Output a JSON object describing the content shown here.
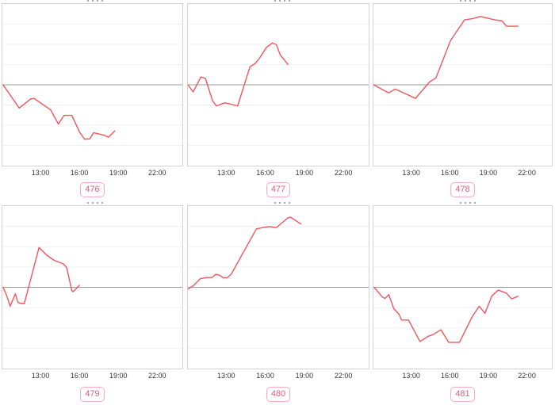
{
  "colors": {
    "line": "#f0545c",
    "zero_line": "#9b9b9b",
    "gridline": "#f0f0f0",
    "border": "#d3d3d3",
    "tick_text": "#333333",
    "badge_text": "#e25c82",
    "badge_border": "#f5abc0",
    "background": "#ffffff"
  },
  "x_axis": {
    "tick_labels": [
      "13:00",
      "16:00",
      "19:00",
      "22:00"
    ],
    "tick_hours": [
      13,
      16,
      19,
      22
    ],
    "range_hours": [
      10,
      24
    ],
    "grid": "horizontal-only",
    "y_axis_labels": "none"
  },
  "chart_data": [
    {
      "type": "line",
      "label": "476",
      "title": "",
      "x_unit": "time-of-day-hours",
      "y_unit": "relative-gridline-units (zero = center reference line)",
      "x": [
        10.05,
        11.3,
        12.2,
        12.45,
        13.75,
        14.35,
        14.8,
        15.4,
        16.0,
        16.4,
        16.8,
        17.1,
        17.95,
        18.25,
        18.75
      ],
      "y": [
        0.0,
        -1.15,
        -0.7,
        -0.67,
        -1.24,
        -1.94,
        -1.51,
        -1.51,
        -2.33,
        -2.69,
        -2.67,
        -2.37,
        -2.5,
        -2.6,
        -2.28
      ]
    },
    {
      "type": "line",
      "label": "477",
      "title": "",
      "x_unit": "time-of-day-hours",
      "y_unit": "relative-gridline-units (zero = center reference line)",
      "x": [
        10.0,
        10.4,
        11.0,
        11.35,
        11.9,
        12.2,
        12.85,
        13.4,
        13.85,
        14.8,
        15.2,
        15.5,
        16.1,
        16.55,
        16.85,
        17.15,
        17.75
      ],
      "y": [
        0.0,
        -0.35,
        0.39,
        0.32,
        -0.78,
        -1.05,
        -0.89,
        -0.97,
        -1.05,
        0.89,
        1.05,
        1.28,
        1.86,
        2.07,
        1.99,
        1.48,
        1.01
      ]
    },
    {
      "type": "line",
      "label": "478",
      "title": "",
      "x_unit": "time-of-day-hours",
      "y_unit": "relative-gridline-units (zero = center reference line)",
      "x": [
        10.0,
        11.2,
        11.7,
        12.3,
        13.3,
        14.4,
        14.9,
        16.05,
        16.35,
        17.15,
        17.75,
        18.4,
        19.5,
        20.1,
        20.45,
        21.35
      ],
      "y": [
        0.0,
        -0.4,
        -0.21,
        -0.38,
        -0.67,
        0.14,
        0.34,
        2.19,
        2.47,
        3.21,
        3.27,
        3.38,
        3.22,
        3.16,
        2.9,
        2.9
      ]
    },
    {
      "type": "line",
      "label": "479",
      "title": "",
      "x_unit": "time-of-day-hours",
      "y_unit": "relative-gridline-units (zero = center reference line)",
      "x": [
        10.05,
        10.3,
        10.6,
        11.0,
        11.2,
        11.4,
        11.7,
        12.85,
        13.45,
        14.05,
        14.75,
        15.0,
        15.4,
        15.5,
        16.0
      ],
      "y": [
        0.0,
        -0.36,
        -0.93,
        -0.32,
        -0.74,
        -0.78,
        -0.8,
        1.96,
        1.58,
        1.32,
        1.15,
        0.97,
        -0.16,
        -0.22,
        0.1
      ]
    },
    {
      "type": "line",
      "label": "480",
      "title": "",
      "x_unit": "time-of-day-hours",
      "y_unit": "relative-gridline-units (zero = center reference line)",
      "x": [
        10.0,
        10.45,
        10.95,
        11.45,
        11.85,
        12.15,
        12.45,
        12.75,
        13.05,
        13.35,
        14.5,
        15.3,
        15.7,
        16.3,
        16.85,
        17.75,
        17.95,
        18.75
      ],
      "y": [
        -0.09,
        0.1,
        0.42,
        0.48,
        0.48,
        0.64,
        0.59,
        0.46,
        0.48,
        0.64,
        1.96,
        2.87,
        2.93,
        2.99,
        2.94,
        3.42,
        3.45,
        3.12
      ]
    },
    {
      "type": "line",
      "label": "481",
      "title": "",
      "x_unit": "time-of-day-hours",
      "y_unit": "relative-gridline-units (zero = center reference line)",
      "x": [
        10.05,
        10.7,
        10.9,
        11.2,
        11.6,
        12.0,
        12.2,
        12.75,
        13.65,
        14.3,
        14.7,
        15.3,
        15.9,
        16.75,
        17.75,
        18.3,
        18.75,
        19.3,
        19.8,
        20.45,
        20.85,
        21.35
      ],
      "y": [
        0.0,
        -0.48,
        -0.55,
        -0.36,
        -1.06,
        -1.32,
        -1.61,
        -1.61,
        -2.67,
        -2.41,
        -2.32,
        -2.09,
        -2.71,
        -2.71,
        -1.45,
        -0.93,
        -1.28,
        -0.42,
        -0.14,
        -0.29,
        -0.57,
        -0.44
      ]
    }
  ]
}
